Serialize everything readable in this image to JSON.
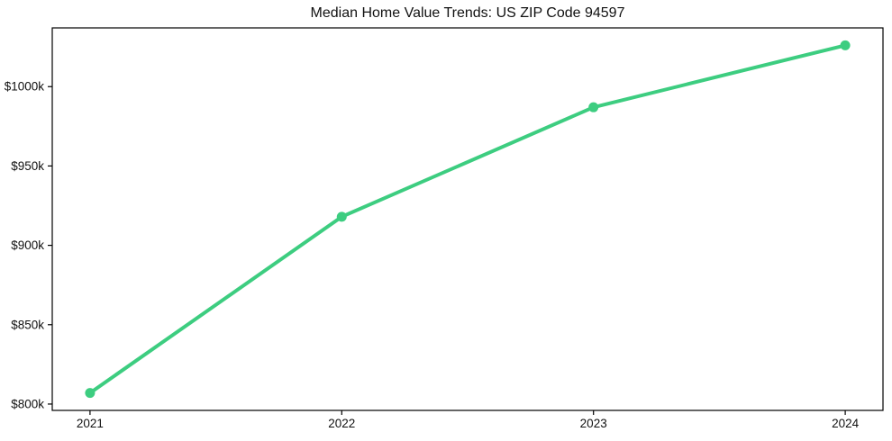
{
  "chart_data": {
    "type": "line",
    "title": "Median Home Value Trends: US ZIP Code 94597",
    "x": [
      2021,
      2022,
      2023,
      2024
    ],
    "xtick_labels": [
      "2021",
      "2022",
      "2023",
      "2024"
    ],
    "series": [
      {
        "name": "Median Home Value",
        "values": [
          807000,
          918000,
          987000,
          1026000
        ]
      }
    ],
    "ytick_values": [
      800000,
      850000,
      900000,
      950000,
      1000000
    ],
    "ytick_labels": [
      "$800k",
      "$850k",
      "$900k",
      "$950k",
      "$1000k"
    ],
    "xlim": [
      2020.85,
      2024.15
    ],
    "ylim": [
      796000,
      1037000
    ],
    "grid": false,
    "legend": "none",
    "line_color": "#3dcd80",
    "marker": "circle",
    "axis_color": "#000000",
    "text_color": "#111111",
    "background_color": "#ffffff"
  }
}
